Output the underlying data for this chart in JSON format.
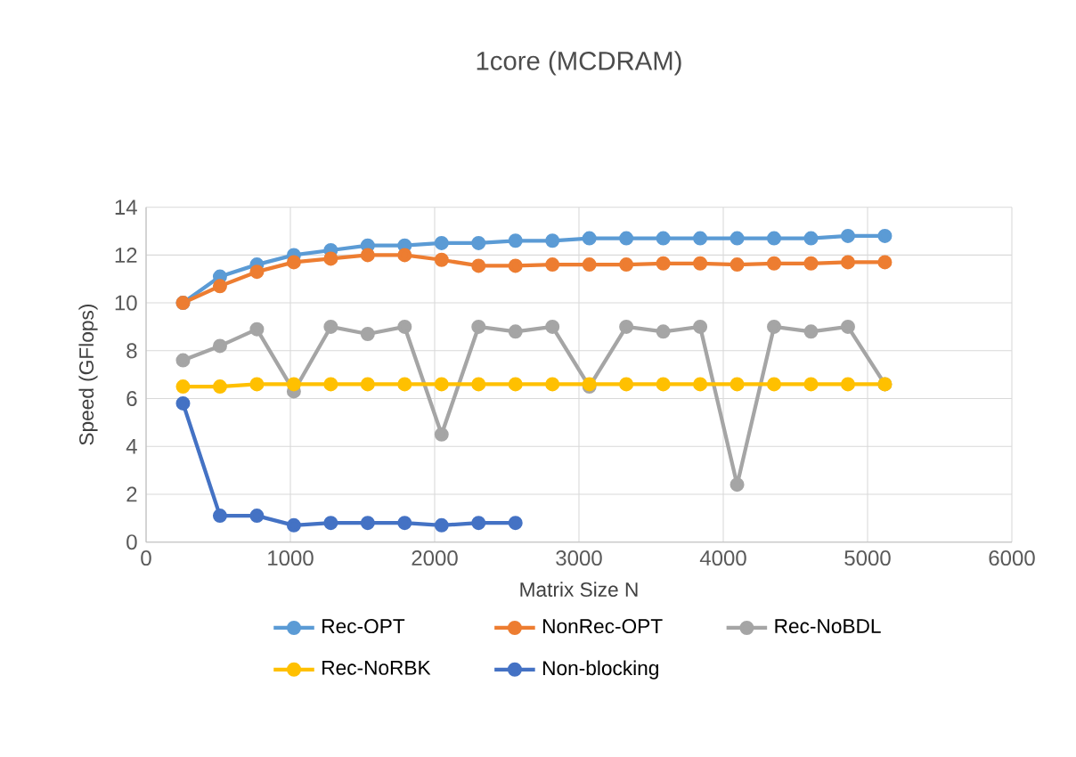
{
  "chart_data": {
    "type": "line",
    "title": "1core (MCDRAM)",
    "xlabel": "Matrix Size N",
    "ylabel": "Speed (GFlops)",
    "x": [
      256,
      512,
      768,
      1024,
      1280,
      1536,
      1792,
      2048,
      2304,
      2560,
      2816,
      3072,
      3328,
      3584,
      3840,
      4096,
      4352,
      4608,
      4864,
      5120
    ],
    "series": [
      {
        "name": "Rec-OPT",
        "color": "#5b9bd5",
        "values": [
          10.0,
          11.1,
          11.6,
          12.0,
          12.2,
          12.4,
          12.4,
          12.5,
          12.5,
          12.6,
          12.6,
          12.7,
          12.7,
          12.7,
          12.7,
          12.7,
          12.7,
          12.7,
          12.8,
          12.8
        ]
      },
      {
        "name": "NonRec-OPT",
        "color": "#ed7d31",
        "values": [
          10.0,
          10.7,
          11.3,
          11.7,
          11.85,
          12.0,
          12.0,
          11.8,
          11.55,
          11.55,
          11.6,
          11.6,
          11.6,
          11.65,
          11.65,
          11.6,
          11.65,
          11.65,
          11.7,
          11.7
        ]
      },
      {
        "name": "Rec-NoBDL",
        "color": "#a5a5a5",
        "values": [
          7.6,
          8.2,
          8.9,
          6.3,
          9.0,
          8.7,
          9.0,
          4.5,
          9.0,
          8.8,
          9.0,
          6.5,
          9.0,
          8.8,
          9.0,
          2.4,
          9.0,
          8.8,
          9.0,
          6.6
        ]
      },
      {
        "name": "Rec-NoRBK",
        "color": "#ffc000",
        "values": [
          6.5,
          6.5,
          6.6,
          6.6,
          6.6,
          6.6,
          6.6,
          6.6,
          6.6,
          6.6,
          6.6,
          6.6,
          6.6,
          6.6,
          6.6,
          6.6,
          6.6,
          6.6,
          6.6,
          6.6
        ]
      },
      {
        "name": "Non-blocking",
        "color": "#4472c4",
        "x": [
          256,
          512,
          768,
          1024,
          1280,
          1536,
          1792,
          2048,
          2304,
          2560
        ],
        "values": [
          5.8,
          1.1,
          1.1,
          0.7,
          0.8,
          0.8,
          0.8,
          0.7,
          0.8,
          0.8
        ]
      }
    ],
    "xlim": [
      0,
      6000
    ],
    "xticks": [
      0,
      1000,
      2000,
      3000,
      4000,
      5000,
      6000
    ],
    "ylim": [
      0,
      14
    ],
    "yticks": [
      0,
      2,
      4,
      6,
      8,
      10,
      12,
      14
    ],
    "grid": true,
    "legend": "bottom",
    "marker": "circle",
    "line_style": "solid"
  }
}
